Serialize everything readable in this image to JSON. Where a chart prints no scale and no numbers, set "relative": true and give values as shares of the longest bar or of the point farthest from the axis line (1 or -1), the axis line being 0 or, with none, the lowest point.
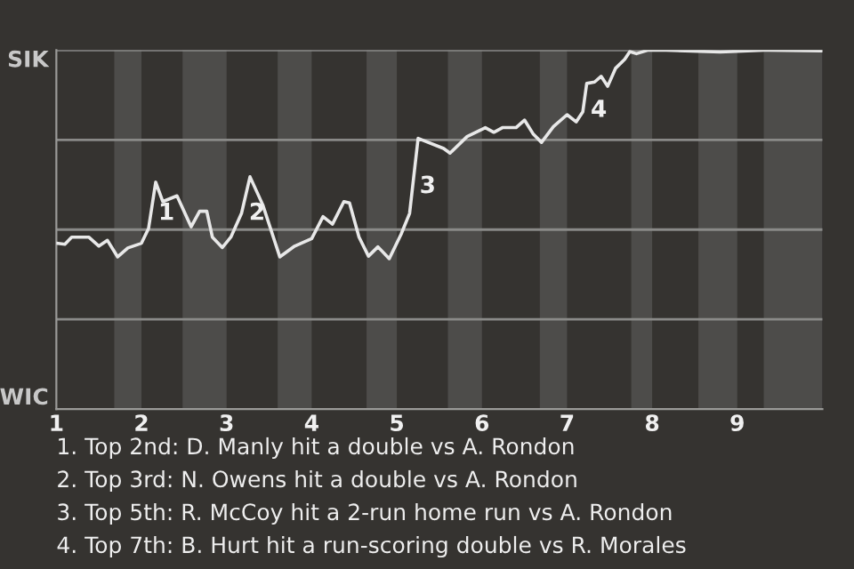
{
  "chart_data": {
    "type": "line",
    "relative": true,
    "x": [
      1.0,
      1.1,
      1.18,
      1.38,
      1.5,
      1.6,
      1.72,
      1.84,
      2.0,
      2.083,
      2.167,
      2.25,
      2.417,
      2.583,
      2.683,
      2.767,
      2.833,
      2.95,
      3.05,
      3.175,
      3.275,
      3.425,
      3.625,
      3.8,
      4.0,
      4.133,
      4.244,
      4.378,
      4.444,
      4.556,
      4.667,
      4.778,
      4.911,
      5.05,
      5.15,
      5.25,
      5.55,
      5.625,
      5.825,
      6.04,
      6.14,
      6.24,
      6.4,
      6.5,
      6.6,
      6.7,
      6.84,
      7.0,
      7.108,
      7.185,
      7.231,
      7.323,
      7.4,
      7.477,
      7.569,
      7.677,
      7.738,
      7.815,
      7.954,
      8.086,
      8.8,
      9.378,
      10.0
    ],
    "series": [
      {
        "color": "#e8e8e8",
        "values": [
          0.462,
          0.459,
          0.479,
          0.479,
          0.454,
          0.47,
          0.424,
          0.449,
          0.462,
          0.503,
          0.632,
          0.578,
          0.594,
          0.508,
          0.551,
          0.551,
          0.479,
          0.45,
          0.479,
          0.545,
          0.647,
          0.569,
          0.424,
          0.454,
          0.475,
          0.536,
          0.515,
          0.578,
          0.574,
          0.479,
          0.426,
          0.452,
          0.419,
          0.487,
          0.545,
          0.754,
          0.726,
          0.713,
          0.759,
          0.784,
          0.771,
          0.784,
          0.784,
          0.805,
          0.767,
          0.743,
          0.787,
          0.82,
          0.8,
          0.828,
          0.907,
          0.911,
          0.927,
          0.899,
          0.949,
          0.974,
          0.996,
          0.99,
          1.0,
          1.0,
          0.995,
          1.0,
          0.998
        ]
      }
    ],
    "xlim": [
      1,
      10
    ],
    "xticks": [
      1,
      2,
      3,
      4,
      5,
      6,
      7,
      8,
      9
    ],
    "grid": "y",
    "marker": "none",
    "line_style": "solid",
    "bands": [
      {
        "axis": "x",
        "from": 1.68,
        "to": 2,
        "color": "#4d4c4a"
      },
      {
        "axis": "x",
        "from": 2.483,
        "to": 3,
        "color": "#4d4c4a"
      },
      {
        "axis": "x",
        "from": 3.6,
        "to": 4,
        "color": "#4d4c4a"
      },
      {
        "axis": "x",
        "from": 4.644,
        "to": 5,
        "color": "#4d4c4a"
      },
      {
        "axis": "x",
        "from": 5.6,
        "to": 6,
        "color": "#4d4c4a"
      },
      {
        "axis": "x",
        "from": 6.68,
        "to": 7,
        "color": "#4d4c4a"
      },
      {
        "axis": "x",
        "from": 7.754,
        "to": 8,
        "color": "#4d4c4a"
      },
      {
        "axis": "x",
        "from": 8.543,
        "to": 9,
        "color": "#4d4c4a"
      },
      {
        "axis": "x",
        "from": 9.311,
        "to": 10,
        "color": "#4d4c4a"
      }
    ],
    "annotations": [
      "SIK",
      "WIC",
      {
        "text": "1",
        "x": 2.11,
        "y": 0.545
      },
      {
        "text": "2",
        "x": 3.175,
        "y": 0.545
      },
      {
        "text": "3",
        "x": 5.18,
        "y": 0.62
      },
      {
        "text": "4",
        "x": 7.19,
        "y": 0.832
      },
      "1. Top 2nd: D. Manly hit a double vs A. Rondon",
      "2. Top 3rd: N. Owens hit a double vs A. Rondon",
      "3. Top 5th: R. McCoy hit a 2-run home run vs A. Rondon",
      "4. Top 7th: B. Hurt hit a run-scoring double vs R. Morales"
    ]
  }
}
